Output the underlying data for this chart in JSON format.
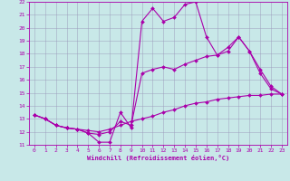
{
  "xlabel": "Windchill (Refroidissement éolien,°C)",
  "xlim": [
    -0.5,
    23.5
  ],
  "ylim": [
    11,
    22
  ],
  "yticks": [
    11,
    12,
    13,
    14,
    15,
    16,
    17,
    18,
    19,
    20,
    21,
    22
  ],
  "xticks": [
    0,
    1,
    2,
    3,
    4,
    5,
    6,
    7,
    8,
    9,
    10,
    11,
    12,
    13,
    14,
    15,
    16,
    17,
    18,
    19,
    20,
    21,
    22,
    23
  ],
  "line_color": "#aa00aa",
  "bg_color": "#c8e8e8",
  "grid_color": "#9999bb",
  "line1_x": [
    0,
    1,
    2,
    3,
    4,
    5,
    6,
    7,
    8,
    9,
    10,
    11,
    12,
    13,
    14,
    15,
    16,
    17,
    18,
    19,
    20,
    21,
    22,
    23
  ],
  "line1_y": [
    13.3,
    13.0,
    12.5,
    12.3,
    12.2,
    11.9,
    11.2,
    11.2,
    13.5,
    12.3,
    20.5,
    21.5,
    20.5,
    20.8,
    21.8,
    22.0,
    19.3,
    17.9,
    18.5,
    19.3,
    18.2,
    16.5,
    15.3,
    14.9
  ],
  "line2_x": [
    0,
    1,
    2,
    3,
    4,
    5,
    6,
    7,
    8,
    9,
    10,
    11,
    12,
    13,
    14,
    15,
    16,
    17,
    18,
    19,
    20,
    21,
    22,
    23
  ],
  "line2_y": [
    13.3,
    13.0,
    12.5,
    12.3,
    12.2,
    11.9,
    11.8,
    12.0,
    12.8,
    12.5,
    16.5,
    16.8,
    17.0,
    16.8,
    17.2,
    17.5,
    17.8,
    17.9,
    18.2,
    19.3,
    18.2,
    16.8,
    15.5,
    14.9
  ],
  "line3_x": [
    0,
    1,
    2,
    3,
    4,
    5,
    6,
    7,
    8,
    9,
    10,
    11,
    12,
    13,
    14,
    15,
    16,
    17,
    18,
    19,
    20,
    21,
    22,
    23
  ],
  "line3_y": [
    13.3,
    13.0,
    12.5,
    12.3,
    12.2,
    12.1,
    12.0,
    12.2,
    12.5,
    12.8,
    13.0,
    13.2,
    13.5,
    13.7,
    14.0,
    14.2,
    14.3,
    14.5,
    14.6,
    14.7,
    14.8,
    14.8,
    14.9,
    14.9
  ]
}
